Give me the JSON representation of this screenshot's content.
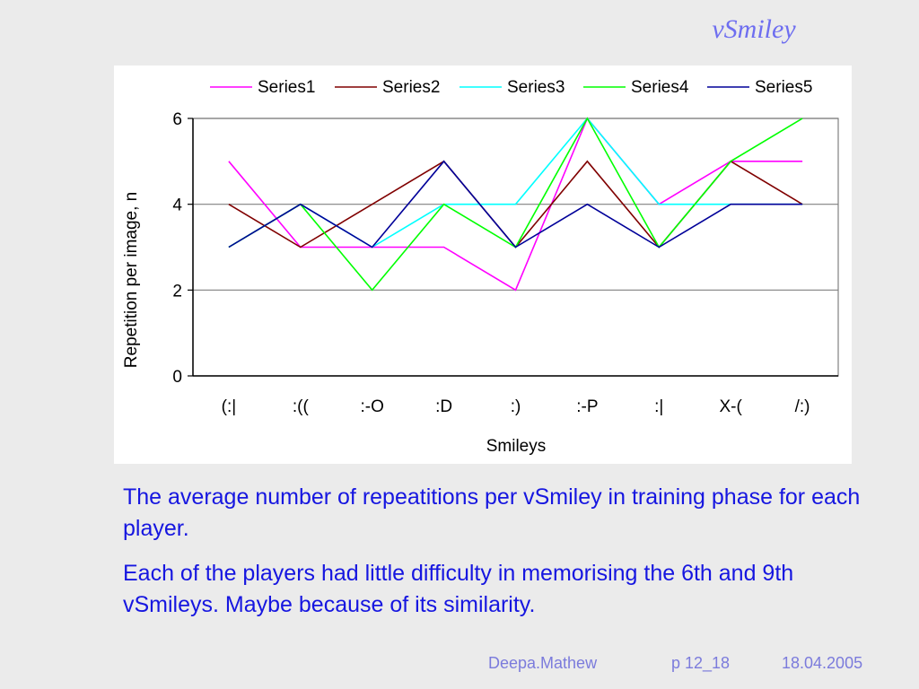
{
  "slide": {
    "title": "vSmiley",
    "paragraphs": [
      "The average number of repeatitions per vSmiley in training phase for each player.",
      "Each of the players had little difficulty in memorising the 6th and 9th vSmileys. Maybe because of its similarity."
    ],
    "footer": {
      "author": "Deepa.Mathew",
      "page": "p 12_18",
      "date": "18.04.2005"
    }
  },
  "chart_data": {
    "type": "line",
    "title": "",
    "xlabel": "Smileys",
    "ylabel": "Repetition per image, n",
    "categories": [
      "(:|",
      ":((",
      ":-O",
      ":D",
      ":)",
      ":-P",
      ":|",
      "X-(",
      "/:)"
    ],
    "ylim": [
      0,
      6
    ],
    "yticks": [
      0,
      2,
      4,
      6
    ],
    "grid": true,
    "legend_position": "top",
    "series": [
      {
        "name": "Series1",
        "color": "#ff00ff",
        "values": [
          5,
          3,
          3,
          3,
          2,
          6,
          4,
          5,
          5
        ]
      },
      {
        "name": "Series2",
        "color": "#800000",
        "values": [
          4,
          3,
          4,
          5,
          3,
          5,
          3,
          5,
          4
        ]
      },
      {
        "name": "Series3",
        "color": "#00ffff",
        "values": [
          3,
          4,
          3,
          4,
          4,
          6,
          4,
          4,
          4
        ]
      },
      {
        "name": "Series4",
        "color": "#00ff00",
        "values": [
          3,
          4,
          2,
          4,
          3,
          6,
          3,
          5,
          6
        ]
      },
      {
        "name": "Series5",
        "color": "#000099",
        "values": [
          3,
          4,
          3,
          5,
          3,
          4,
          3,
          4,
          4
        ]
      }
    ]
  }
}
